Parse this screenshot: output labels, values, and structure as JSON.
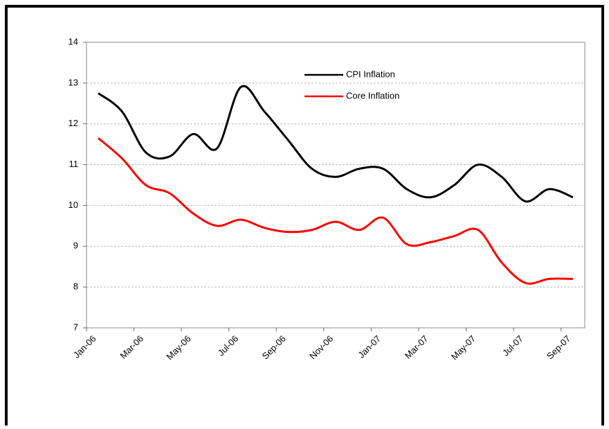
{
  "chart_data": {
    "type": "line",
    "categories": [
      "Jan-06",
      null,
      "Mar-06",
      null,
      "May-06",
      null,
      "Jul-06",
      null,
      "Sep-06",
      null,
      "Nov-06",
      null,
      "Jan-07",
      null,
      "Mar-07",
      null,
      "May-07",
      null,
      "Jul-07",
      null,
      "Sep-07"
    ],
    "series": [
      {
        "name": "CPI Inflation",
        "color": "#000000",
        "values": [
          12.75,
          12.3,
          11.3,
          11.2,
          11.75,
          11.4,
          12.9,
          12.3,
          11.6,
          10.9,
          10.7,
          10.9,
          10.9,
          10.4,
          10.2,
          10.5,
          11.0,
          10.7,
          10.1,
          10.4,
          10.2
        ]
      },
      {
        "name": "Core Inflation",
        "color": "#ff0000",
        "values": [
          11.65,
          11.15,
          10.5,
          10.3,
          9.8,
          9.5,
          9.65,
          9.45,
          9.35,
          9.4,
          9.6,
          9.4,
          9.7,
          9.05,
          9.1,
          9.25,
          9.4,
          8.6,
          8.1,
          8.2,
          8.2
        ]
      }
    ],
    "ylim": [
      7,
      14
    ],
    "yticks": [
      7,
      8,
      9,
      10,
      11,
      12,
      13,
      14
    ],
    "grid": true,
    "legend": "upper center"
  }
}
